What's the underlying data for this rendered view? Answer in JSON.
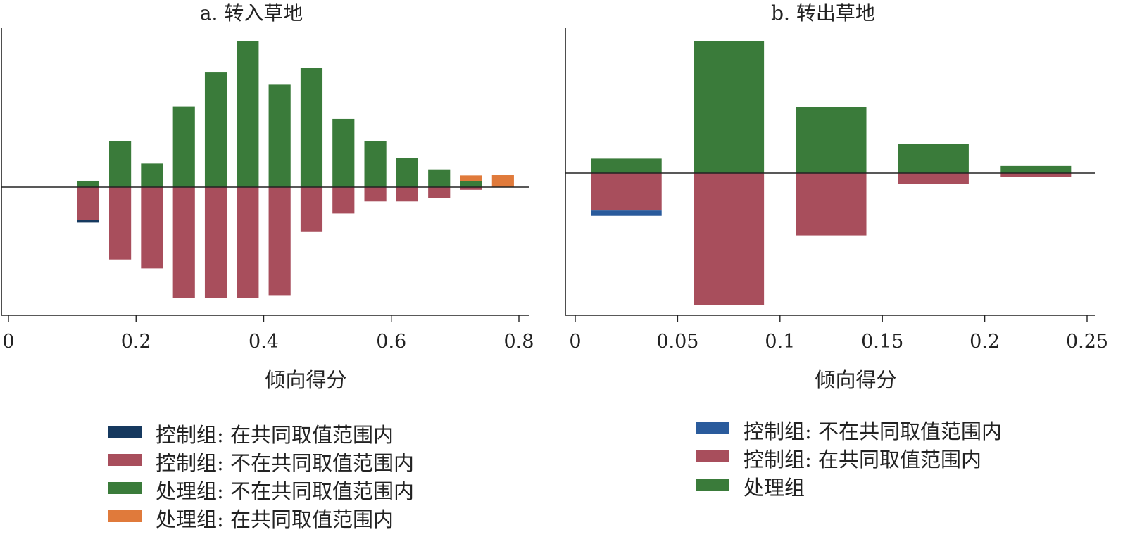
{
  "chart_data": [
    {
      "type": "bar",
      "title": "a. 转入草地",
      "xlabel": "倾向得分",
      "ylabel": "",
      "xlim": [
        -0.01,
        0.82
      ],
      "xticks": [
        "0",
        "0.2",
        "0.4",
        "0.6",
        "0.8"
      ],
      "xtick_values": [
        0,
        0.2,
        0.4,
        0.6,
        0.8
      ],
      "ylim": [
        -0.53,
        0.6
      ],
      "bar_width": 0.04,
      "grid": false,
      "baseline": 0,
      "upper": [
        {
          "name": "处理组: 不在共同取值范围内",
          "color": "#3a7b3a",
          "x": [
            0.125,
            0.175,
            0.225,
            0.275,
            0.325,
            0.375,
            0.425,
            0.475,
            0.525,
            0.575,
            0.625,
            0.675,
            0.725
          ],
          "values": [
            0.026,
            0.19,
            0.097,
            0.33,
            0.47,
            0.6,
            0.42,
            0.49,
            0.28,
            0.19,
            0.12,
            0.073,
            0.026
          ]
        },
        {
          "name": "处理组: 在共同取值范围内",
          "color": "#e07a3b",
          "x": [
            0.725,
            0.775
          ],
          "values": [
            0.022,
            0.049
          ]
        }
      ],
      "lower": [
        {
          "name": "控制组: 不在共同取值范围内",
          "color": "#a84e5c",
          "x": [
            0.125,
            0.175,
            0.225,
            0.275,
            0.325,
            0.375,
            0.425,
            0.475,
            0.525,
            0.575,
            0.625,
            0.675,
            0.725
          ],
          "values": [
            -0.147,
            -0.324,
            -0.364,
            -0.496,
            -0.496,
            -0.496,
            -0.484,
            -0.198,
            -0.118,
            -0.064,
            -0.064,
            -0.05,
            -0.012
          ]
        },
        {
          "name": "控制组: 在共同取值范围内",
          "color": "#16395f",
          "x": [
            0.125
          ],
          "values": [
            -0.012
          ]
        }
      ],
      "legend": {
        "placement": "bottom",
        "entries": [
          {
            "label": "控制组: 在共同取值范围内",
            "color": "#16395f"
          },
          {
            "label": "控制组: 不在共同取值范围内",
            "color": "#a84e5c"
          },
          {
            "label": "处理组: 不在共同取值范围内",
            "color": "#3a7b3a"
          },
          {
            "label": "处理组: 在共同取值范围内",
            "color": "#e07a3b"
          }
        ]
      }
    },
    {
      "type": "bar",
      "title": "b. 转出草地",
      "xlabel": "倾向得分",
      "ylabel": "",
      "xlim": [
        -0.002,
        0.253
      ],
      "xticks": [
        "0",
        "0.05",
        "0.1",
        "0.15",
        "0.2",
        "0.25"
      ],
      "xtick_values": [
        0,
        0.05,
        0.1,
        0.15,
        0.2,
        0.25
      ],
      "ylim": [
        -0.52,
        0.52
      ],
      "bar_width": 0.04,
      "grid": false,
      "baseline": 0,
      "upper": [
        {
          "name": "处理组",
          "color": "#3a7b3a",
          "x": [
            0.025,
            0.075,
            0.125,
            0.175,
            0.225
          ],
          "values": [
            0.057,
            0.52,
            0.26,
            0.115,
            0.028
          ]
        }
      ],
      "lower": [
        {
          "name": "控制组: 在共同取值范围内",
          "color": "#a84e5c",
          "x": [
            0.025,
            0.075,
            0.125,
            0.175,
            0.225
          ],
          "values": [
            -0.147,
            -0.52,
            -0.245,
            -0.042,
            -0.015
          ]
        },
        {
          "name": "控制组: 不在共同取值范围内",
          "color": "#2a5b9c",
          "x": [
            0.025
          ],
          "values": [
            -0.021
          ]
        }
      ],
      "legend": {
        "placement": "bottom",
        "entries": [
          {
            "label": "控制组: 不在共同取值范围内",
            "color": "#2a5b9c"
          },
          {
            "label": "控制组: 在共同取值范围内",
            "color": "#a84e5c"
          },
          {
            "label": "处理组",
            "color": "#3a7b3a"
          }
        ]
      }
    }
  ]
}
